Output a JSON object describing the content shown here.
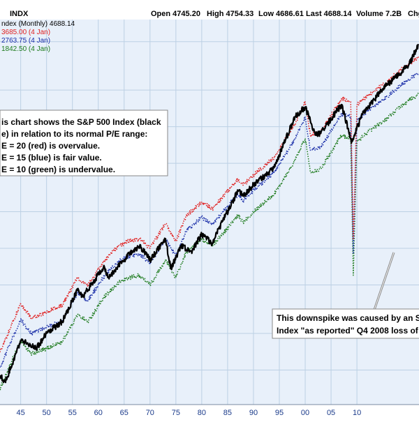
{
  "header": {
    "ticker": "INDX",
    "open": "Open 4745.20",
    "high": "High 4754.33",
    "low": "Low 4686.61",
    "last": "Last 4688.14",
    "volume": "Volume 7.2B",
    "change": "Chg"
  },
  "legend": {
    "index": "ndex (Monthly) 4688.14",
    "red": "3685.00 (4 Jan)",
    "blue": "2763.75 (4 Jan)",
    "green": "1842.50 (4 Jan)"
  },
  "annotation_box": {
    "lines": [
      "is chart shows the S&P 500 Index (black",
      "e) in relation to its normal P/E range:",
      "E = 20 (red) is overvalue.",
      "E = 15 (blue) is fair value.",
      "E = 10 (green) is undervalue."
    ]
  },
  "callout": {
    "lines": [
      "This downspike was caused by an S",
      "Index \"as reported\" Q4 2008 loss of"
    ]
  },
  "colors": {
    "background": "#e8f0fa",
    "grid": "#bcd0e4",
    "index": "#000000",
    "red": "#e02020",
    "blue": "#1a2ea8",
    "green": "#1c7a1c",
    "axis_text": "#1a3a8a"
  },
  "chart_data": {
    "type": "line",
    "scale": "log",
    "x_tick_labels": [
      "45",
      "50",
      "55",
      "60",
      "65",
      "70",
      "75",
      "80",
      "85",
      "90",
      "95",
      "00",
      "05",
      "10"
    ],
    "x_ticks": [
      1945,
      1950,
      1955,
      1960,
      1965,
      1970,
      1975,
      1980,
      1985,
      1990,
      1995,
      2000,
      2005,
      2010
    ],
    "xlim": [
      1941,
      2022
    ],
    "series": [
      {
        "key": "index",
        "x": [
          1941,
          1942,
          1945,
          1946,
          1948,
          1950,
          1953,
          1956,
          1957,
          1961,
          1962,
          1966,
          1968,
          1970,
          1973,
          1974,
          1976,
          1978,
          1980,
          1982,
          1987,
          1988,
          1990,
          1994,
          1998,
          2000,
          2002,
          2003,
          2007,
          2009,
          2011,
          2015,
          2020,
          2021.9
        ],
        "y": [
          9,
          8,
          17,
          17,
          15,
          20,
          25,
          45,
          40,
          70,
          58,
          90,
          105,
          80,
          120,
          68,
          105,
          95,
          130,
          110,
          300,
          270,
          330,
          460,
          1200,
          1450,
          850,
          880,
          1520,
          750,
          1250,
          2050,
          3200,
          4688
        ],
        "style": "solid"
      },
      {
        "key": "red",
        "x": [
          1941,
          1945,
          1947,
          1950,
          1953,
          1956,
          1958,
          1961,
          1964,
          1966,
          1968,
          1970,
          1973,
          1975,
          1977,
          1980,
          1982,
          1987,
          1988,
          1990,
          1994,
          1998,
          2000,
          2001,
          2003,
          2007,
          2008.8,
          2009.3,
          2010,
          2012,
          2015,
          2020,
          2021.9
        ],
        "y": [
          14,
          35,
          27,
          30,
          34,
          57,
          50,
          78,
          105,
          115,
          120,
          100,
          160,
          115,
          185,
          240,
          210,
          370,
          330,
          400,
          560,
          1050,
          1600,
          850,
          900,
          1700,
          1600,
          120,
          1500,
          1800,
          2200,
          3300,
          3685
        ],
        "style": "dotted"
      },
      {
        "key": "blue",
        "x": [
          1941,
          1945,
          1947,
          1950,
          1953,
          1956,
          1958,
          1961,
          1964,
          1966,
          1968,
          1970,
          1973,
          1975,
          1977,
          1980,
          1982,
          1987,
          1988,
          1990,
          1994,
          1998,
          2000,
          2001,
          2003,
          2007,
          2008.8,
          2009.3,
          2010,
          2012,
          2015,
          2020,
          2021.9
        ],
        "y": [
          10.5,
          26,
          20,
          22.5,
          25.5,
          43,
          37,
          58,
          79,
          86,
          90,
          75,
          120,
          86,
          139,
          180,
          158,
          278,
          248,
          300,
          420,
          790,
          1200,
          640,
          675,
          1275,
          1200,
          90,
          1125,
          1350,
          1650,
          2475,
          2763
        ],
        "style": "dotted"
      },
      {
        "key": "green",
        "x": [
          1941,
          1945,
          1947,
          1950,
          1953,
          1956,
          1958,
          1961,
          1964,
          1966,
          1968,
          1970,
          1973,
          1975,
          1977,
          1980,
          1982,
          1987,
          1988,
          1990,
          1994,
          1998,
          2000,
          2001,
          2003,
          2007,
          2008.8,
          2009.3,
          2010,
          2012,
          2015,
          2020,
          2021.9
        ],
        "y": [
          7,
          17.5,
          13.5,
          15,
          17,
          28.5,
          25,
          39,
          52.5,
          57.5,
          60,
          50,
          80,
          57.5,
          92.5,
          120,
          105,
          185,
          165,
          200,
          280,
          525,
          800,
          425,
          450,
          850,
          800,
          60,
          750,
          900,
          1100,
          1650,
          1842
        ],
        "style": "dotted"
      }
    ]
  }
}
